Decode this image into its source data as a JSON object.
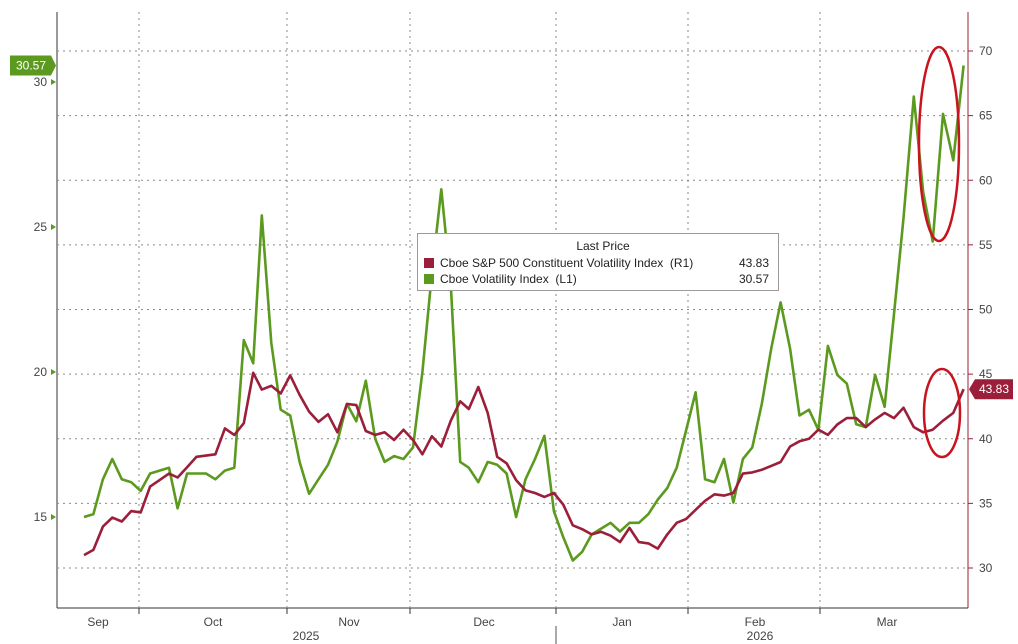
{
  "chart_data": {
    "type": "line",
    "legend": {
      "title": "Last Price",
      "entries": [
        {
          "name": "Cboe S&P 500 Constituent Volatility Index  (R1)",
          "value": "43.83",
          "color": "#9b1f3a"
        },
        {
          "name": "Cboe Volatility Index  (L1)",
          "value": "30.57",
          "color": "#5b9a1f"
        }
      ]
    },
    "left_axis": {
      "ticks": [
        "15",
        "20",
        "25",
        "30"
      ],
      "ylim": [
        12,
        32.5
      ],
      "last_label": "30.57",
      "color": "#5b9a1f"
    },
    "right_axis": {
      "ticks": [
        "30",
        "35",
        "40",
        "45",
        "50",
        "55",
        "60",
        "65",
        "70"
      ],
      "ylim": [
        27.5,
        74.5
      ],
      "last_label": "43.83",
      "color": "#9b1f3a"
    },
    "x_axis": {
      "months": [
        "Sep",
        "Oct",
        "Nov",
        "Dec",
        "Jan",
        "Feb",
        "Mar"
      ],
      "years": [
        "2025",
        "2026"
      ],
      "range": [
        0,
        1
      ]
    },
    "series": [
      {
        "name": "Cboe Volatility Index",
        "axis": "left",
        "color": "#5b9a1f",
        "points": [
          [
            0.0,
            15.0
          ],
          [
            0.011,
            15.1
          ],
          [
            0.022,
            16.3
          ],
          [
            0.033,
            17.0
          ],
          [
            0.044,
            16.3
          ],
          [
            0.055,
            16.2
          ],
          [
            0.066,
            15.9
          ],
          [
            0.077,
            16.5
          ],
          [
            0.088,
            16.6
          ],
          [
            0.099,
            16.7
          ],
          [
            0.109,
            15.3
          ],
          [
            0.12,
            16.5
          ],
          [
            0.131,
            16.5
          ],
          [
            0.142,
            16.5
          ],
          [
            0.153,
            16.3
          ],
          [
            0.164,
            16.6
          ],
          [
            0.175,
            16.7
          ],
          [
            0.186,
            21.1
          ],
          [
            0.197,
            20.3
          ],
          [
            0.207,
            25.4
          ],
          [
            0.218,
            21.0
          ],
          [
            0.229,
            18.7
          ],
          [
            0.24,
            18.5
          ],
          [
            0.251,
            16.9
          ],
          [
            0.262,
            15.8
          ],
          [
            0.273,
            16.3
          ],
          [
            0.284,
            16.8
          ],
          [
            0.295,
            17.6
          ],
          [
            0.306,
            18.9
          ],
          [
            0.317,
            18.3
          ],
          [
            0.328,
            19.7
          ],
          [
            0.339,
            17.7
          ],
          [
            0.35,
            16.9
          ],
          [
            0.361,
            17.1
          ],
          [
            0.372,
            17.0
          ],
          [
            0.383,
            17.4
          ],
          [
            0.394,
            20.0
          ],
          [
            0.405,
            23.4
          ],
          [
            0.416,
            26.3
          ],
          [
            0.427,
            23.0
          ],
          [
            0.438,
            16.9
          ],
          [
            0.448,
            16.7
          ],
          [
            0.459,
            16.2
          ],
          [
            0.47,
            16.9
          ],
          [
            0.481,
            16.8
          ],
          [
            0.492,
            16.5
          ],
          [
            0.503,
            15.0
          ],
          [
            0.514,
            16.3
          ],
          [
            0.525,
            17.0
          ],
          [
            0.536,
            17.8
          ],
          [
            0.547,
            15.2
          ],
          [
            0.558,
            14.3
          ],
          [
            0.569,
            13.5
          ],
          [
            0.58,
            13.8
          ],
          [
            0.591,
            14.4
          ],
          [
            0.602,
            14.6
          ],
          [
            0.613,
            14.8
          ],
          [
            0.624,
            14.5
          ],
          [
            0.635,
            14.8
          ],
          [
            0.646,
            14.8
          ],
          [
            0.657,
            15.1
          ],
          [
            0.668,
            15.6
          ],
          [
            0.679,
            16.0
          ],
          [
            0.69,
            16.7
          ],
          [
            0.701,
            18.0
          ],
          [
            0.712,
            19.3
          ],
          [
            0.723,
            16.3
          ],
          [
            0.734,
            16.2
          ],
          [
            0.745,
            17.0
          ],
          [
            0.756,
            15.5
          ],
          [
            0.767,
            17.0
          ],
          [
            0.778,
            17.4
          ],
          [
            0.789,
            18.9
          ],
          [
            0.8,
            20.8
          ],
          [
            0.811,
            22.4
          ],
          [
            0.822,
            20.8
          ],
          [
            0.833,
            18.5
          ],
          [
            0.844,
            18.7
          ],
          [
            0.855,
            18.0
          ],
          [
            0.866,
            20.9
          ],
          [
            0.877,
            19.9
          ],
          [
            0.888,
            19.6
          ],
          [
            0.899,
            18.2
          ],
          [
            0.91,
            18.1
          ],
          [
            0.921,
            19.9
          ],
          [
            0.932,
            18.8
          ],
          [
            0.943,
            22.0
          ],
          [
            0.954,
            25.3
          ],
          [
            0.966,
            29.5
          ],
          [
            0.977,
            26.2
          ],
          [
            0.988,
            24.5
          ],
          [
            1.0,
            28.9
          ],
          [
            1.012,
            27.3
          ],
          [
            1.024,
            30.57
          ]
        ]
      },
      {
        "name": "Cboe S&P 500 Constituent Volatility Index",
        "axis": "right",
        "color": "#9b1f3a",
        "points": [
          [
            0.0,
            31.0
          ],
          [
            0.011,
            31.4
          ],
          [
            0.022,
            33.2
          ],
          [
            0.033,
            33.9
          ],
          [
            0.044,
            33.6
          ],
          [
            0.055,
            34.4
          ],
          [
            0.066,
            34.3
          ],
          [
            0.077,
            36.3
          ],
          [
            0.088,
            36.8
          ],
          [
            0.099,
            37.3
          ],
          [
            0.109,
            37.0
          ],
          [
            0.12,
            37.8
          ],
          [
            0.131,
            38.6
          ],
          [
            0.142,
            38.7
          ],
          [
            0.153,
            38.8
          ],
          [
            0.164,
            40.8
          ],
          [
            0.175,
            40.3
          ],
          [
            0.186,
            41.2
          ],
          [
            0.197,
            45.1
          ],
          [
            0.207,
            43.8
          ],
          [
            0.218,
            44.1
          ],
          [
            0.229,
            43.5
          ],
          [
            0.24,
            44.9
          ],
          [
            0.251,
            43.4
          ],
          [
            0.262,
            42.1
          ],
          [
            0.273,
            41.3
          ],
          [
            0.284,
            41.9
          ],
          [
            0.295,
            40.5
          ],
          [
            0.306,
            42.7
          ],
          [
            0.317,
            42.6
          ],
          [
            0.328,
            40.6
          ],
          [
            0.339,
            40.3
          ],
          [
            0.35,
            40.5
          ],
          [
            0.361,
            39.9
          ],
          [
            0.372,
            40.7
          ],
          [
            0.383,
            39.9
          ],
          [
            0.394,
            38.8
          ],
          [
            0.405,
            40.2
          ],
          [
            0.416,
            39.4
          ],
          [
            0.427,
            41.4
          ],
          [
            0.438,
            42.9
          ],
          [
            0.448,
            42.3
          ],
          [
            0.459,
            44.0
          ],
          [
            0.47,
            42.0
          ],
          [
            0.481,
            38.6
          ],
          [
            0.492,
            38.1
          ],
          [
            0.503,
            36.8
          ],
          [
            0.514,
            36.0
          ],
          [
            0.525,
            35.8
          ],
          [
            0.536,
            35.5
          ],
          [
            0.547,
            35.8
          ],
          [
            0.558,
            34.9
          ],
          [
            0.569,
            33.3
          ],
          [
            0.58,
            33.0
          ],
          [
            0.591,
            32.6
          ],
          [
            0.602,
            32.8
          ],
          [
            0.613,
            32.5
          ],
          [
            0.624,
            32.0
          ],
          [
            0.635,
            33.1
          ],
          [
            0.646,
            32.0
          ],
          [
            0.657,
            31.9
          ],
          [
            0.668,
            31.5
          ],
          [
            0.679,
            32.6
          ],
          [
            0.69,
            33.5
          ],
          [
            0.701,
            33.8
          ],
          [
            0.712,
            34.5
          ],
          [
            0.723,
            35.2
          ],
          [
            0.734,
            35.7
          ],
          [
            0.745,
            35.6
          ],
          [
            0.756,
            35.8
          ],
          [
            0.767,
            37.3
          ],
          [
            0.778,
            37.4
          ],
          [
            0.789,
            37.6
          ],
          [
            0.8,
            37.9
          ],
          [
            0.811,
            38.2
          ],
          [
            0.822,
            39.4
          ],
          [
            0.833,
            39.8
          ],
          [
            0.844,
            40.0
          ],
          [
            0.855,
            40.7
          ],
          [
            0.866,
            40.3
          ],
          [
            0.877,
            41.1
          ],
          [
            0.888,
            41.6
          ],
          [
            0.899,
            41.6
          ],
          [
            0.91,
            40.9
          ],
          [
            0.921,
            41.5
          ],
          [
            0.932,
            42.0
          ],
          [
            0.943,
            41.6
          ],
          [
            0.954,
            42.4
          ],
          [
            0.966,
            40.9
          ],
          [
            0.977,
            40.5
          ],
          [
            0.988,
            40.7
          ],
          [
            1.0,
            41.4
          ],
          [
            1.012,
            42.0
          ],
          [
            1.024,
            43.83
          ]
        ]
      }
    ]
  }
}
